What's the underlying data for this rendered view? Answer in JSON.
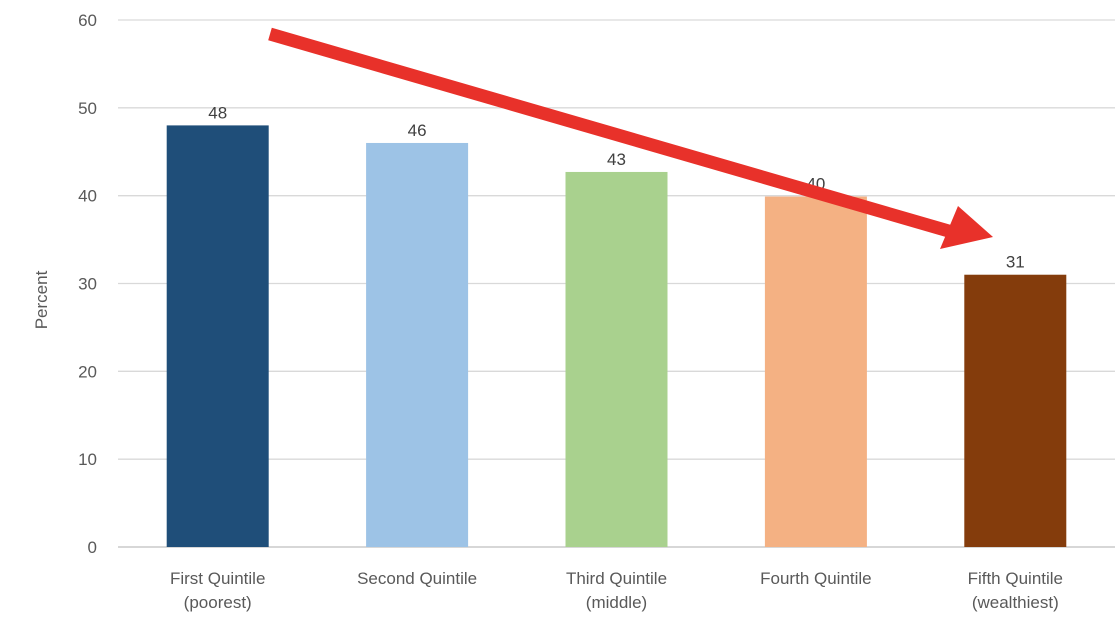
{
  "chart_data": {
    "type": "bar",
    "title": "",
    "xlabel": "",
    "ylabel": "Percent",
    "ylim": [
      0,
      60
    ],
    "yticks": [
      0,
      10,
      20,
      30,
      40,
      50,
      60
    ],
    "grid": true,
    "categories": [
      [
        "First Quintile",
        "(poorest)"
      ],
      [
        "Second Quintile"
      ],
      [
        "Third Quintile",
        "(middle)"
      ],
      [
        "Fourth Quintile"
      ],
      [
        "Fifth Quintile",
        "(wealthiest)"
      ]
    ],
    "values": [
      48,
      46,
      42.7,
      39.9,
      31
    ],
    "data_labels": [
      "48",
      "46",
      "43",
      "40",
      "31"
    ],
    "bar_colors": [
      "#1F4E79",
      "#9DC3E6",
      "#A9D18E",
      "#F4B183",
      "#843C0C"
    ],
    "annotation": {
      "type": "arrow",
      "description": "downward trend arrow",
      "color": "#E8312A"
    },
    "colors": {
      "grid": "#D9D9D9",
      "axis": "#BFBFBF",
      "tick_text": "#595959",
      "data_label_text": "#404040"
    }
  }
}
